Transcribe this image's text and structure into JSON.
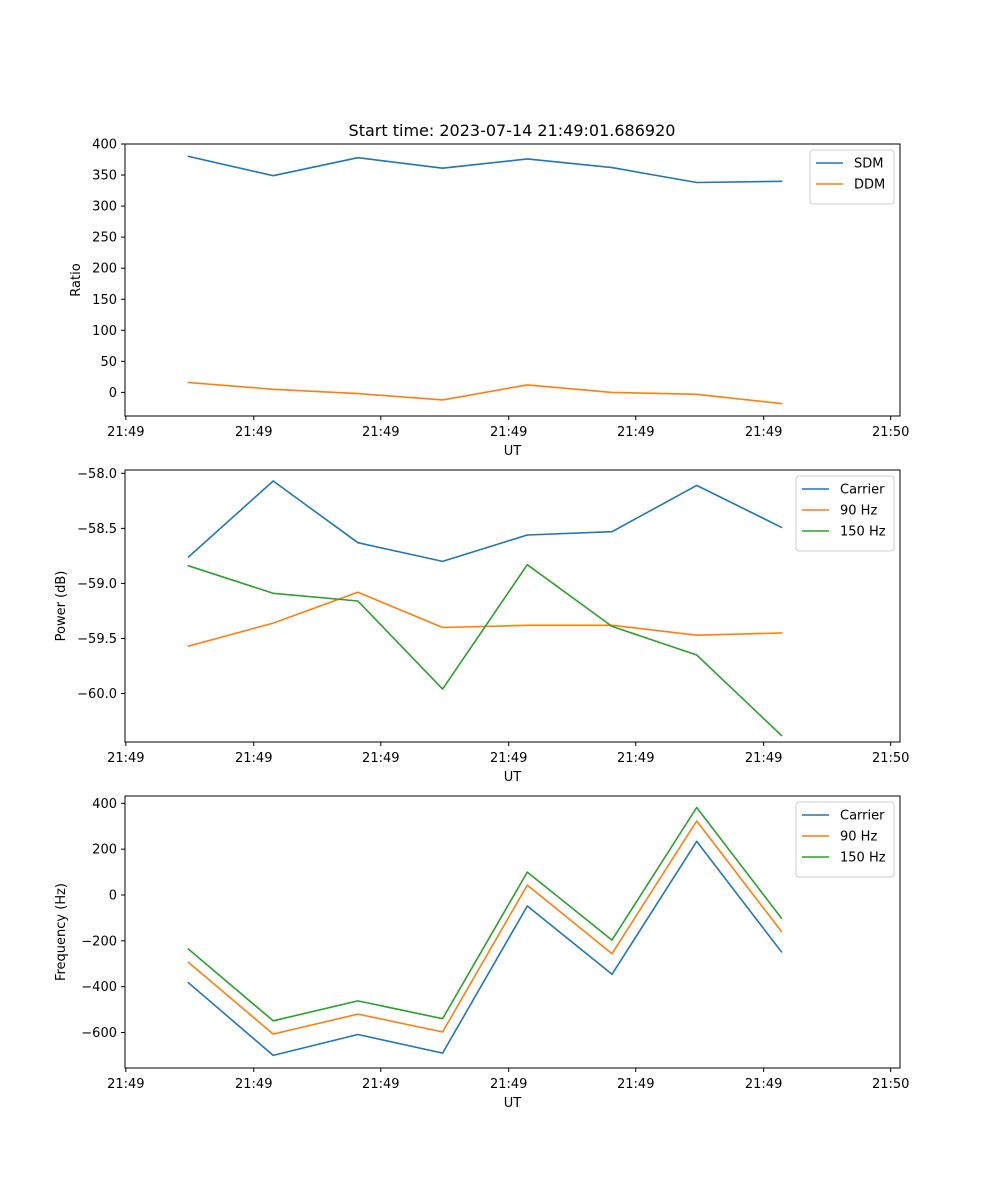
{
  "chart_data": [
    {
      "type": "line",
      "title": "Start time: 2023-07-14 21:49:01.686920",
      "xlabel": "UT",
      "ylabel": "Ratio",
      "x": [
        0,
        1,
        2,
        3,
        4,
        5,
        6,
        7
      ],
      "xlim": [
        -0.75,
        8.4
      ],
      "x_ticks": [
        -0.74,
        0.77,
        2.27,
        3.78,
        5.28,
        6.79,
        8.29
      ],
      "x_tick_labels": [
        "21:49",
        "21:49",
        "21:49",
        "21:49",
        "21:49",
        "21:49",
        "21:50"
      ],
      "ylim": [
        -38,
        400
      ],
      "y_ticks": [
        0,
        50,
        100,
        150,
        200,
        250,
        300,
        350,
        400
      ],
      "y_tick_labels": [
        "0",
        "50",
        "100",
        "150",
        "200",
        "250",
        "300",
        "350",
        "400"
      ],
      "legend_position": "top-right",
      "series": [
        {
          "name": "SDM",
          "color": "#1f77b4",
          "values": [
            380,
            349,
            378,
            361,
            376,
            362,
            338,
            340
          ]
        },
        {
          "name": "DDM",
          "color": "#ff7f0e",
          "values": [
            16,
            5,
            -2,
            -12,
            12,
            0,
            -3,
            -18
          ]
        }
      ]
    },
    {
      "type": "line",
      "title": "",
      "xlabel": "UT",
      "ylabel": "Power (dB)",
      "x": [
        0,
        1,
        2,
        3,
        4,
        5,
        6,
        7
      ],
      "xlim": [
        -0.75,
        8.4
      ],
      "x_ticks": [
        -0.74,
        0.77,
        2.27,
        3.78,
        5.28,
        6.79,
        8.29
      ],
      "x_tick_labels": [
        "21:49",
        "21:49",
        "21:49",
        "21:49",
        "21:49",
        "21:49",
        "21:50"
      ],
      "ylim": [
        -60.44,
        -57.97
      ],
      "y_ticks": [
        -60.0,
        -59.5,
        -59.0,
        -58.5,
        -58.0
      ],
      "y_tick_labels": [
        "−60.0",
        "−59.5",
        "−59.0",
        "−58.5",
        "−58.0"
      ],
      "legend_position": "top-right",
      "series": [
        {
          "name": "Carrier",
          "color": "#1f77b4",
          "values": [
            -58.76,
            -58.07,
            -58.63,
            -58.8,
            -58.56,
            -58.53,
            -58.11,
            -58.49
          ]
        },
        {
          "name": "90 Hz",
          "color": "#ff7f0e",
          "values": [
            -59.57,
            -59.36,
            -59.08,
            -59.4,
            -59.38,
            -59.38,
            -59.47,
            -59.45
          ]
        },
        {
          "name": "150 Hz",
          "color": "#2ca02c",
          "values": [
            -58.84,
            -59.09,
            -59.16,
            -59.96,
            -58.83,
            -59.39,
            -59.65,
            -60.38
          ]
        }
      ]
    },
    {
      "type": "line",
      "title": "",
      "xlabel": "UT",
      "ylabel": "Frequency (Hz)",
      "x": [
        0,
        1,
        2,
        3,
        4,
        5,
        6,
        7
      ],
      "xlim": [
        -0.75,
        8.4
      ],
      "x_ticks": [
        -0.74,
        0.77,
        2.27,
        3.78,
        5.28,
        6.79,
        8.29
      ],
      "x_tick_labels": [
        "21:49",
        "21:49",
        "21:49",
        "21:49",
        "21:49",
        "21:49",
        "21:50"
      ],
      "ylim": [
        -755,
        432
      ],
      "y_ticks": [
        -600,
        -400,
        -200,
        0,
        200,
        400
      ],
      "y_tick_labels": [
        "−600",
        "−400",
        "−200",
        "0",
        "200",
        "400"
      ],
      "legend_position": "top-right",
      "series": [
        {
          "name": "Carrier",
          "color": "#1f77b4",
          "values": [
            -383,
            -700,
            -609,
            -690,
            -48,
            -346,
            234,
            -248
          ]
        },
        {
          "name": "90 Hz",
          "color": "#ff7f0e",
          "values": [
            -294,
            -607,
            -520,
            -598,
            43,
            -256,
            323,
            -159
          ]
        },
        {
          "name": "150 Hz",
          "color": "#2ca02c",
          "values": [
            -236,
            -549,
            -462,
            -540,
            100,
            -197,
            382,
            -101
          ]
        }
      ]
    }
  ]
}
